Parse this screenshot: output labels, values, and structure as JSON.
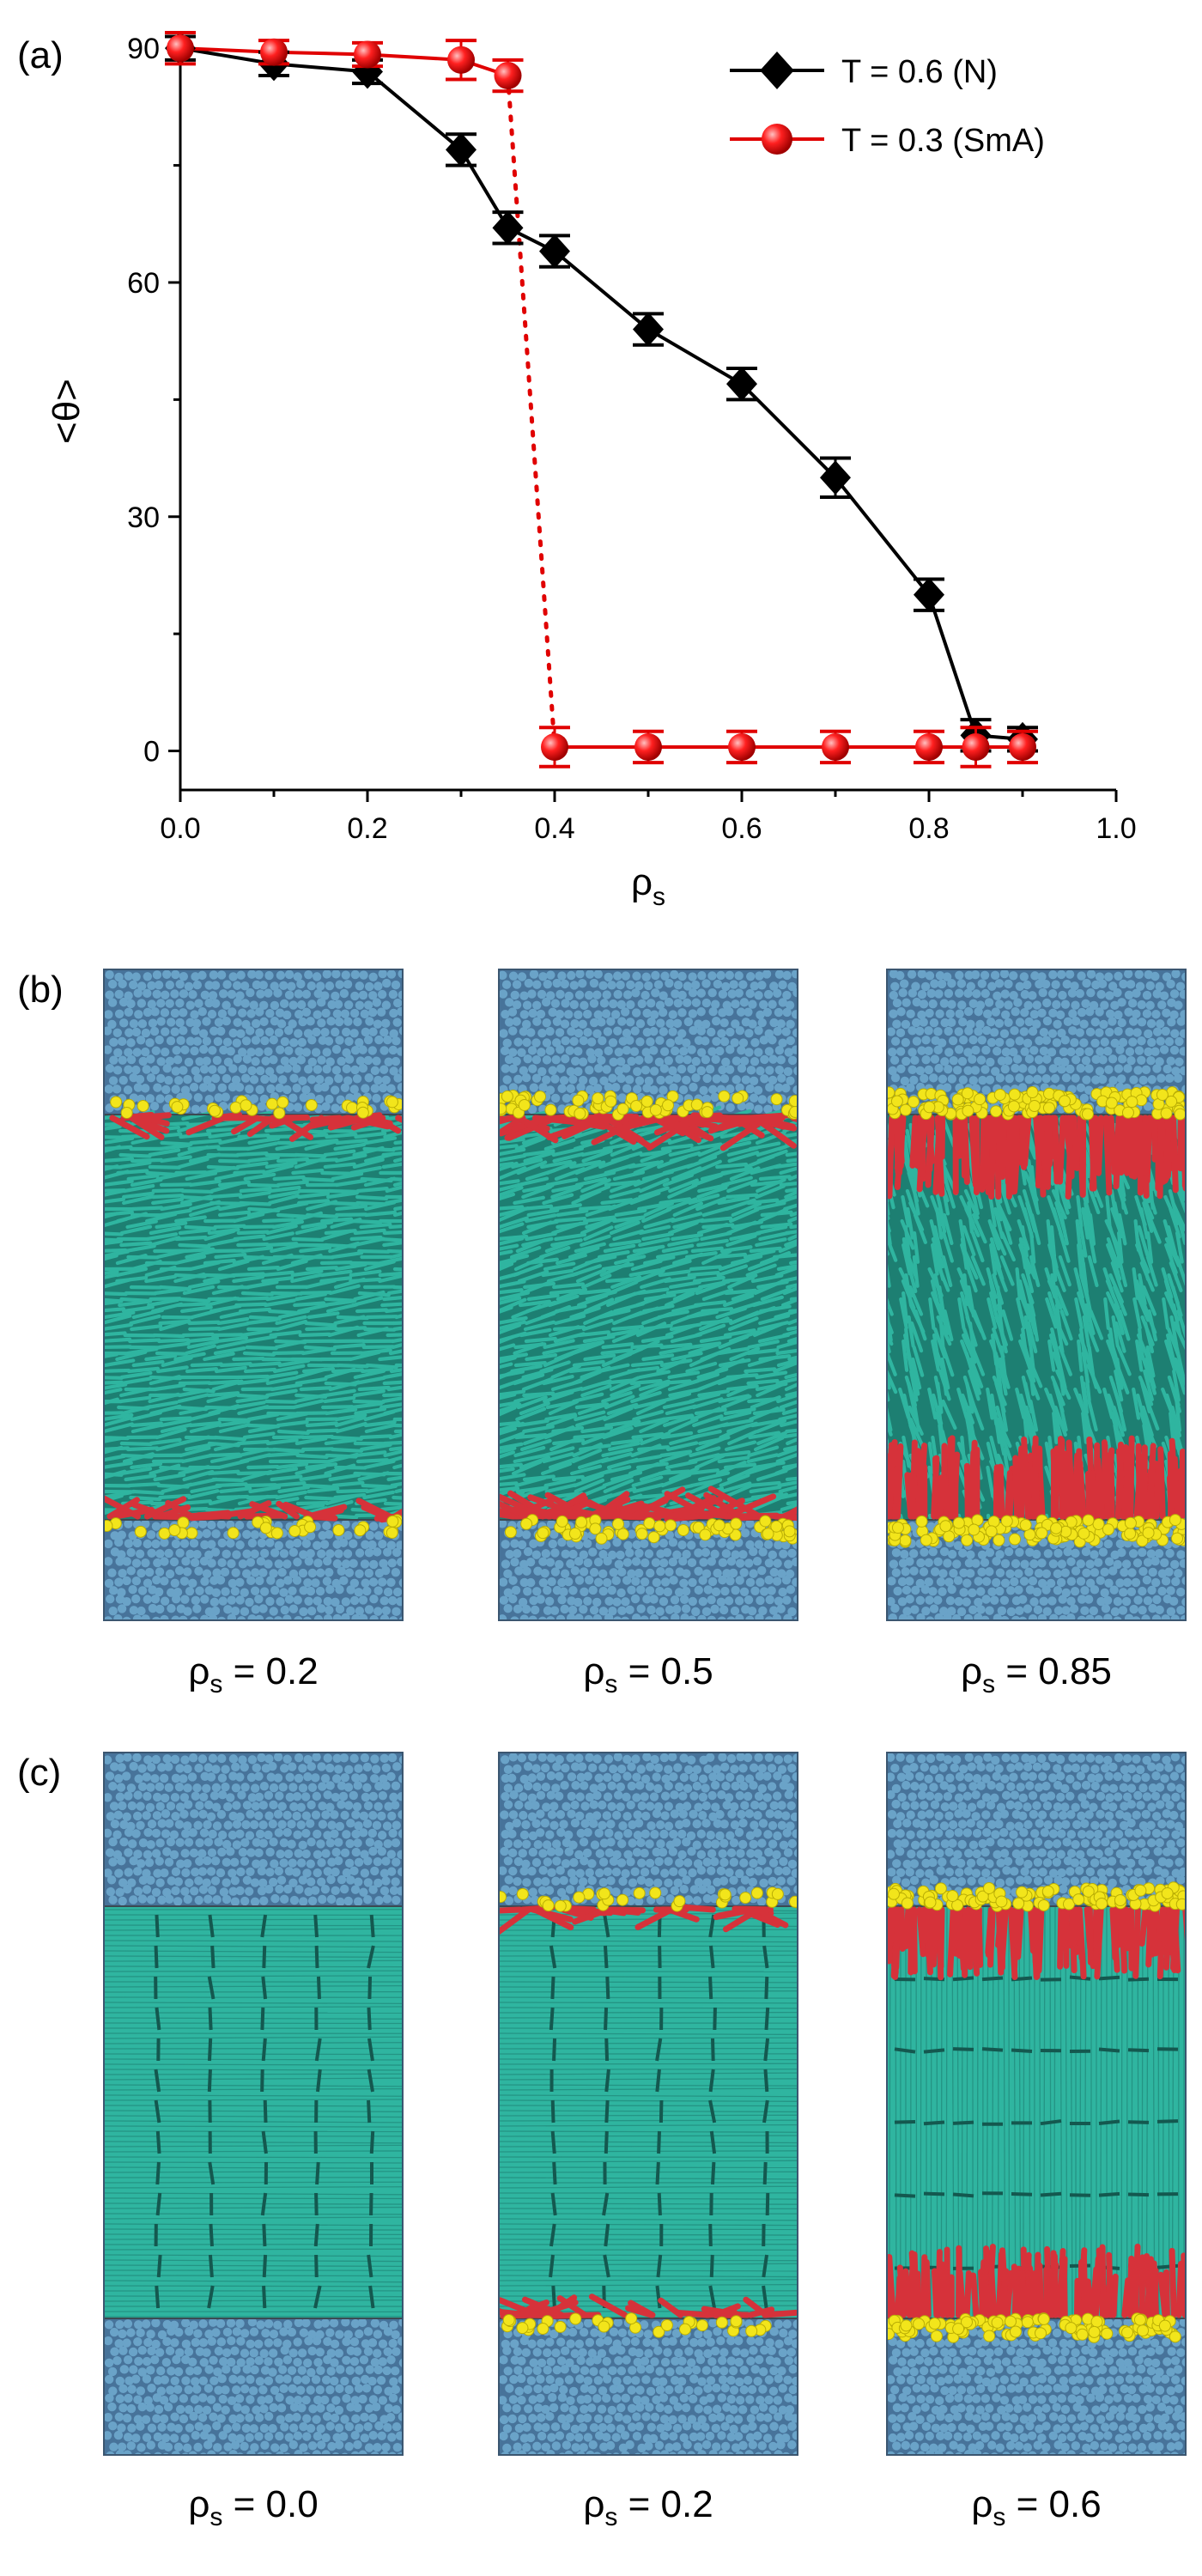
{
  "panels": {
    "a": {
      "label": "(a)"
    },
    "b": {
      "label": "(b)"
    },
    "c": {
      "label": "(c)"
    }
  },
  "chart_data": {
    "type": "line",
    "xlabel_main": "ρ",
    "xlabel_sub": "s",
    "ylabel": "<θ>",
    "xlim": [
      0.0,
      1.0
    ],
    "ylim": [
      -5,
      92
    ],
    "xticks": [
      "0.0",
      "0.2",
      "0.4",
      "0.6",
      "0.8",
      "1.0"
    ],
    "xtick_values": [
      0.0,
      0.2,
      0.4,
      0.6,
      0.8,
      1.0
    ],
    "yticks": [
      "0",
      "30",
      "60",
      "90"
    ],
    "ytick_values": [
      0,
      30,
      60,
      90
    ],
    "legend_position": "top-right",
    "series": [
      {
        "name": "T = 0.6 (N)",
        "color": "#000000",
        "marker": "diamond",
        "x": [
          0.0,
          0.1,
          0.2,
          0.3,
          0.35,
          0.4,
          0.5,
          0.6,
          0.7,
          0.8,
          0.85,
          0.9
        ],
        "y": [
          90,
          88,
          87,
          77,
          67,
          64,
          54,
          47,
          35,
          20,
          2,
          1.5
        ],
        "err": [
          1.5,
          1.5,
          1.5,
          2,
          2,
          2,
          2,
          2,
          2.5,
          2,
          2,
          1.5
        ]
      },
      {
        "name": "T = 0.3 (SmA)",
        "color": "#e00000",
        "marker": "sphere",
        "x": [
          0.0,
          0.1,
          0.2,
          0.3,
          0.35,
          0.4,
          0.5,
          0.6,
          0.7,
          0.8,
          0.85,
          0.9
        ],
        "y": [
          90,
          89.5,
          89.2,
          88.5,
          86.5,
          0.5,
          0.5,
          0.5,
          0.5,
          0.5,
          0.5,
          0.5
        ],
        "err": [
          2,
          1.5,
          1.5,
          2.5,
          2,
          2.5,
          2,
          2,
          2,
          2,
          2.5,
          2
        ],
        "transition": {
          "from": [
            0.35,
            86.5
          ],
          "to": [
            0.4,
            0.5
          ],
          "style": "dotted"
        }
      }
    ]
  },
  "snapshots": {
    "b": [
      {
        "caption_main": "ρ",
        "caption_sub": "s",
        "caption_value": " = 0.2",
        "rho": 0.2,
        "phase": "N"
      },
      {
        "caption_main": "ρ",
        "caption_sub": "s",
        "caption_value": " = 0.5",
        "rho": 0.5,
        "phase": "N"
      },
      {
        "caption_main": "ρ",
        "caption_sub": "s",
        "caption_value": " = 0.85",
        "rho": 0.85,
        "phase": "N"
      }
    ],
    "c": [
      {
        "caption_main": "ρ",
        "caption_sub": "s",
        "caption_value": " = 0.0",
        "rho": 0.0,
        "phase": "SmA"
      },
      {
        "caption_main": "ρ",
        "caption_sub": "s",
        "caption_value": " = 0.2",
        "rho": 0.2,
        "phase": "SmA"
      },
      {
        "caption_main": "ρ",
        "caption_sub": "s",
        "caption_value": " = 0.6",
        "rho": 0.6,
        "phase": "SmA"
      }
    ]
  },
  "colors": {
    "solvent": "#6aa3c8",
    "solvent_dark": "#47739a",
    "liquid_crystal": "#2fb5a0",
    "liquid_crystal_dark": "#1d7f72",
    "surfactant_tail": "#d6323a",
    "surfactant_head": "#f2e51b"
  }
}
